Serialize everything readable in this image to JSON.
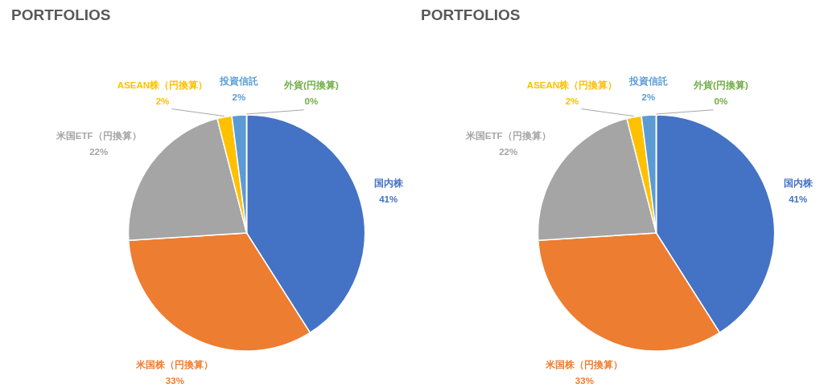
{
  "chart_data": [
    {
      "type": "pie",
      "title": "PORTFOLIOS",
      "categories": [
        "国内株",
        "米国株（円換算）",
        "米国ETF（円換算）",
        "ASEAN株（円換算）",
        "投資信託",
        "外貨(円換算)"
      ],
      "values": [
        41,
        33,
        22,
        2,
        2,
        0
      ],
      "colors": [
        "#4472c4",
        "#ed7d31",
        "#a5a5a5",
        "#ffc000",
        "#5b9bd5",
        "#70ad47"
      ],
      "value_labels": [
        "41%",
        "33%",
        "22%",
        "2%",
        "2%",
        "0%"
      ]
    },
    {
      "type": "pie",
      "title": "PORTFOLIOS",
      "categories": [
        "国内株",
        "米国株（円換算）",
        "米国ETF（円換算）",
        "ASEAN株（円換算）",
        "投資信託",
        "外貨(円換算)"
      ],
      "values": [
        41,
        33,
        22,
        2,
        2,
        0
      ],
      "colors": [
        "#4472c4",
        "#ed7d31",
        "#a5a5a5",
        "#ffc000",
        "#5b9bd5",
        "#70ad47"
      ],
      "value_labels": [
        "41%",
        "33%",
        "22%",
        "2%",
        "2%",
        "0%"
      ]
    }
  ]
}
